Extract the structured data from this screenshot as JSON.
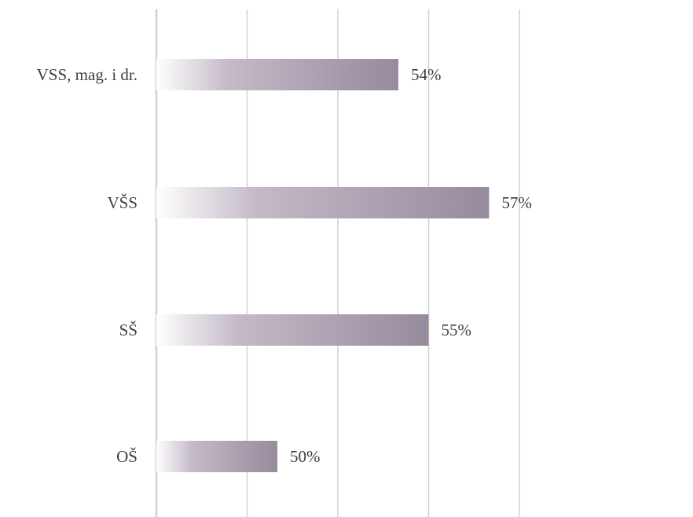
{
  "chart_data": {
    "type": "bar",
    "orientation": "horizontal",
    "categories": [
      "VSS, mag. i dr.",
      "VŠS",
      "SŠ",
      "OŠ"
    ],
    "values": [
      54,
      57,
      55,
      50
    ],
    "value_labels": [
      "54%",
      "57%",
      "55%",
      "50%"
    ],
    "title": "",
    "xlabel": "",
    "ylabel": "",
    "xlim": [
      46,
      58
    ],
    "gridlines": "vertical",
    "legend": "none",
    "axis_tick_labels_visible": false,
    "colors": {
      "bar_start": "#ffffff",
      "bar_mid": "#c4b9c7",
      "bar_end": "#968b9c",
      "gridline": "#d0d0d0",
      "text": "#404040"
    }
  }
}
